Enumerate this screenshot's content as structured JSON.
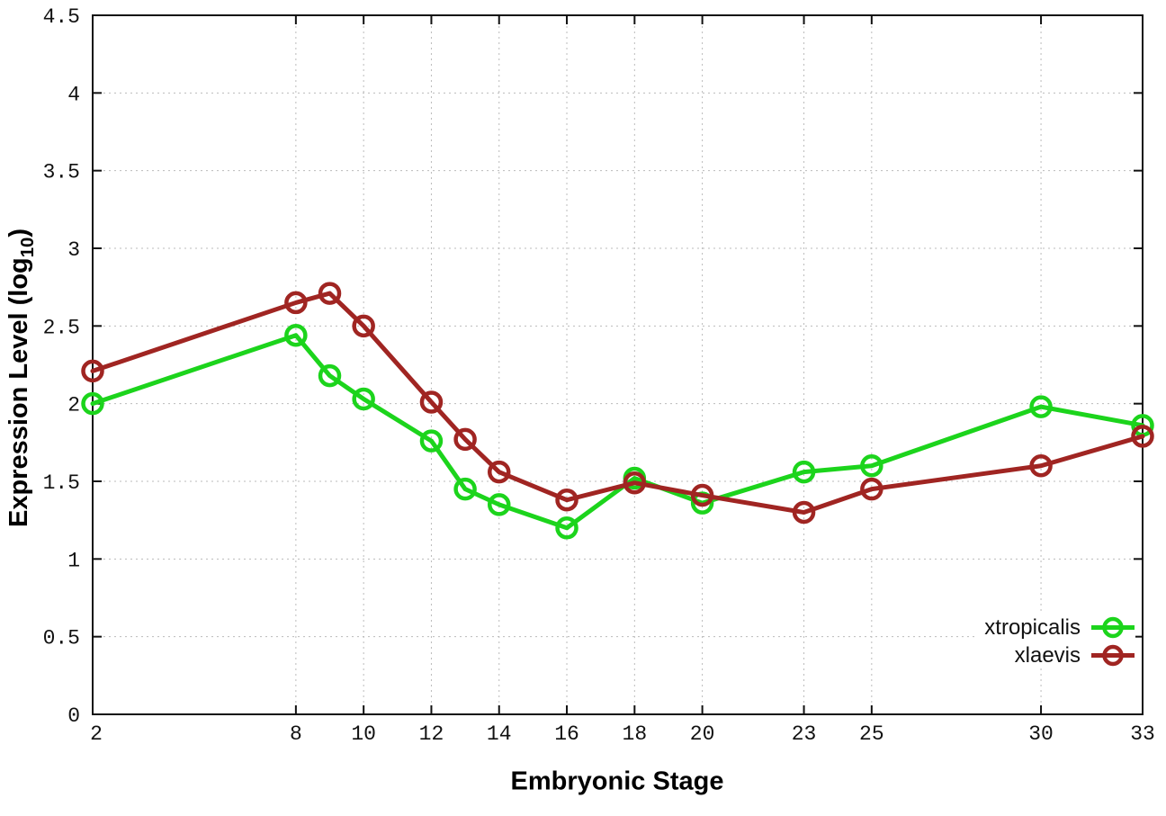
{
  "chart_data": {
    "type": "line",
    "title": "",
    "xlabel": "Embryonic Stage",
    "ylabel": "Expression Level (log10)",
    "ylabel_parts": {
      "prefix": "Expression Level (log",
      "sub": "10",
      "suffix": ")"
    },
    "xlim": [
      2,
      33
    ],
    "ylim": [
      0,
      4.5
    ],
    "grid": true,
    "legend_position": "bottom-right",
    "background_color": "#ffffff",
    "axis_color": "#111111",
    "grid_color": "#bbbbbb",
    "x": [
      2,
      8,
      9,
      10,
      12,
      13,
      14,
      16,
      18,
      20,
      23,
      25,
      30,
      33
    ],
    "series": [
      {
        "name": "xtropicalis",
        "color": "#1cd41c",
        "values": [
          2.0,
          2.44,
          2.18,
          2.03,
          1.76,
          1.45,
          1.35,
          1.2,
          1.52,
          1.36,
          1.56,
          1.6,
          1.98,
          1.86
        ]
      },
      {
        "name": "xlaevis",
        "color": "#a02522",
        "values": [
          2.21,
          2.65,
          2.71,
          2.5,
          2.01,
          1.77,
          1.56,
          1.38,
          1.49,
          1.41,
          1.3,
          1.45,
          1.6,
          1.79
        ]
      }
    ],
    "xticks": {
      "values": [
        2,
        8,
        10,
        12,
        14,
        16,
        18,
        20,
        23,
        25,
        30,
        33
      ],
      "labels": [
        "2",
        "8",
        "10",
        "12",
        "14",
        "16",
        "18",
        "20",
        "23",
        "25",
        "30",
        "33"
      ]
    },
    "yticks": {
      "values": [
        0,
        0.5,
        1,
        1.5,
        2,
        2.5,
        3,
        3.5,
        4,
        4.5
      ],
      "labels": [
        "0",
        "0.5",
        "1",
        "1.5",
        "2",
        "2.5",
        "3",
        "3.5",
        "4",
        "4.5"
      ]
    }
  }
}
